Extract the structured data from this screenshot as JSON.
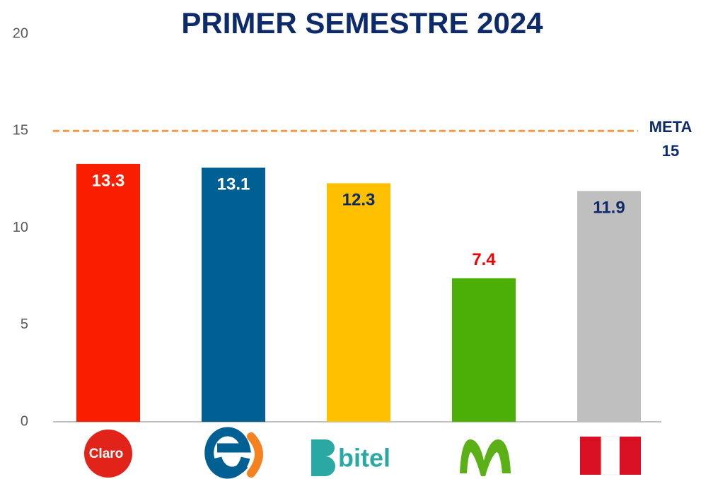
{
  "chart_data": {
    "type": "bar",
    "title": "PRIMER SEMESTRE 2024",
    "categories": [
      "Claro",
      null,
      "bitel",
      null,
      null
    ],
    "values": [
      13.3,
      13.1,
      12.3,
      7.4,
      11.9
    ],
    "colors": [
      "#fa1e00",
      "#005f93",
      "#ffc000",
      "#4caf08",
      "#bfbfbf"
    ],
    "label_colors": [
      "#ffffff",
      "#ffffff",
      "#0d2a6b",
      "#f00000",
      "#0d2a6b"
    ],
    "label_positions": [
      "inside",
      "inside",
      "inside",
      "outside",
      "inside"
    ],
    "ylim": [
      0,
      20
    ],
    "yticks": [
      0,
      5,
      10,
      15,
      20
    ],
    "grid": false,
    "reference_line": {
      "label": "META",
      "value": 15,
      "color": "#f79646"
    }
  }
}
